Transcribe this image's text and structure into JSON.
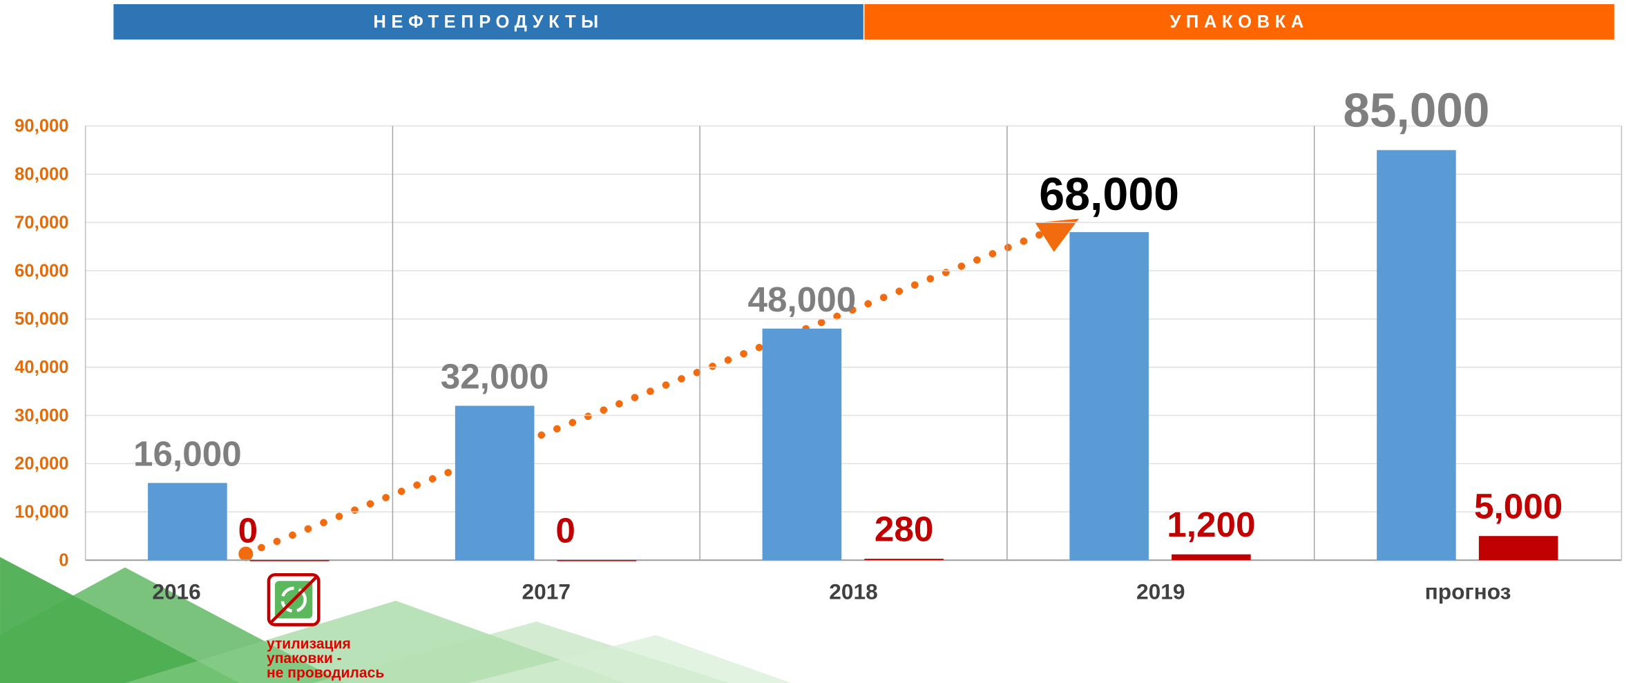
{
  "chart_data": {
    "type": "bar",
    "categories": [
      "2016",
      "2017",
      "2018",
      "2019",
      "прогноз"
    ],
    "series": [
      {
        "name": "НЕФТЕПРОДУКТЫ",
        "color": "#5b9bd5",
        "header_color": "#2e75b6",
        "values": [
          16000,
          32000,
          48000,
          68000,
          85000
        ],
        "value_labels": [
          "16,000",
          "32,000",
          "48,000",
          "68,000",
          "85,000"
        ]
      },
      {
        "name": "УПАКОВКА",
        "color": "#c00000",
        "header_color": "#ff6600",
        "values": [
          0,
          0,
          280,
          1200,
          5000
        ],
        "value_labels": [
          "0",
          "0",
          "280",
          "1,200",
          "5,000"
        ]
      }
    ],
    "ylim": [
      0,
      90000
    ],
    "yticks": [
      0,
      {
        "value": 10000,
        "label": "10,000"
      },
      {
        "value": 20000,
        "label": "20,000"
      },
      {
        "value": 30000,
        "label": "30,000"
      },
      {
        "value": 40000,
        "label": "40,000"
      },
      {
        "value": 50000,
        "label": "50,000"
      },
      {
        "value": 60000,
        "label": "60,000"
      },
      {
        "value": 70000,
        "label": "70,000"
      },
      {
        "value": 80000,
        "label": "80,000"
      },
      {
        "value": {
          "value": 90000,
          "label": "90,000"
        },
        "label": "90,000"
      }
    ],
    "grid": true,
    "annotation": [
      "утилизация",
      "упаковки -",
      "не проводилась"
    ]
  }
}
